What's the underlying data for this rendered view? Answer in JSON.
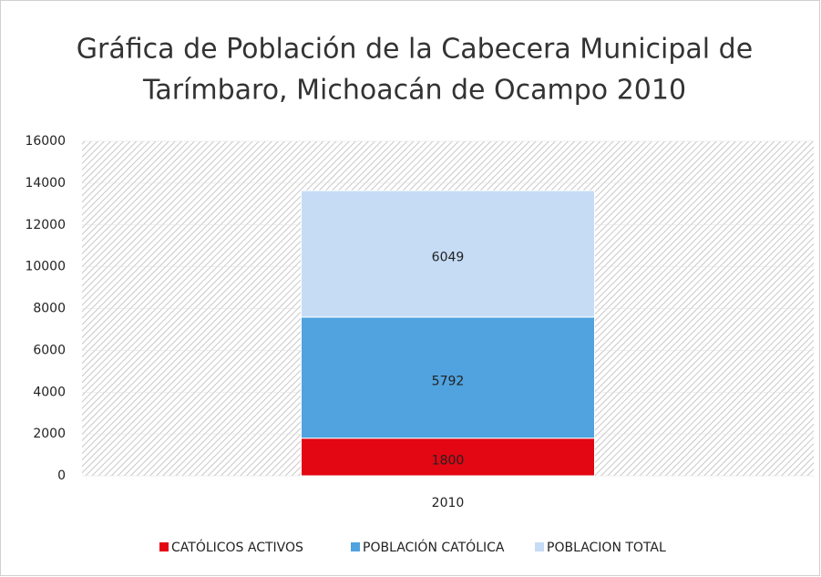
{
  "chart_data": {
    "type": "stacked_bar",
    "title": [
      "Gráfica de Población de la Cabecera Municipal  de",
      "Tarímbaro, Michoacán de Ocampo 2010"
    ],
    "categories": [
      "2010"
    ],
    "series": [
      {
        "name": "CATÓLICOS ACTIVOS",
        "color": "#e30613",
        "values": [
          1800
        ]
      },
      {
        "name": "POBLACIÓN CATÓLICA",
        "color": "#50a3df",
        "values": [
          5792
        ]
      },
      {
        "name": "POBLACION TOTAL",
        "color": "#c6dcf5",
        "values": [
          6049
        ]
      }
    ],
    "ylim": [
      0,
      16000
    ],
    "yticks": [
      0,
      2000,
      4000,
      6000,
      8000,
      10000,
      12000,
      14000,
      16000
    ],
    "grid": true,
    "legend": "bottom"
  }
}
